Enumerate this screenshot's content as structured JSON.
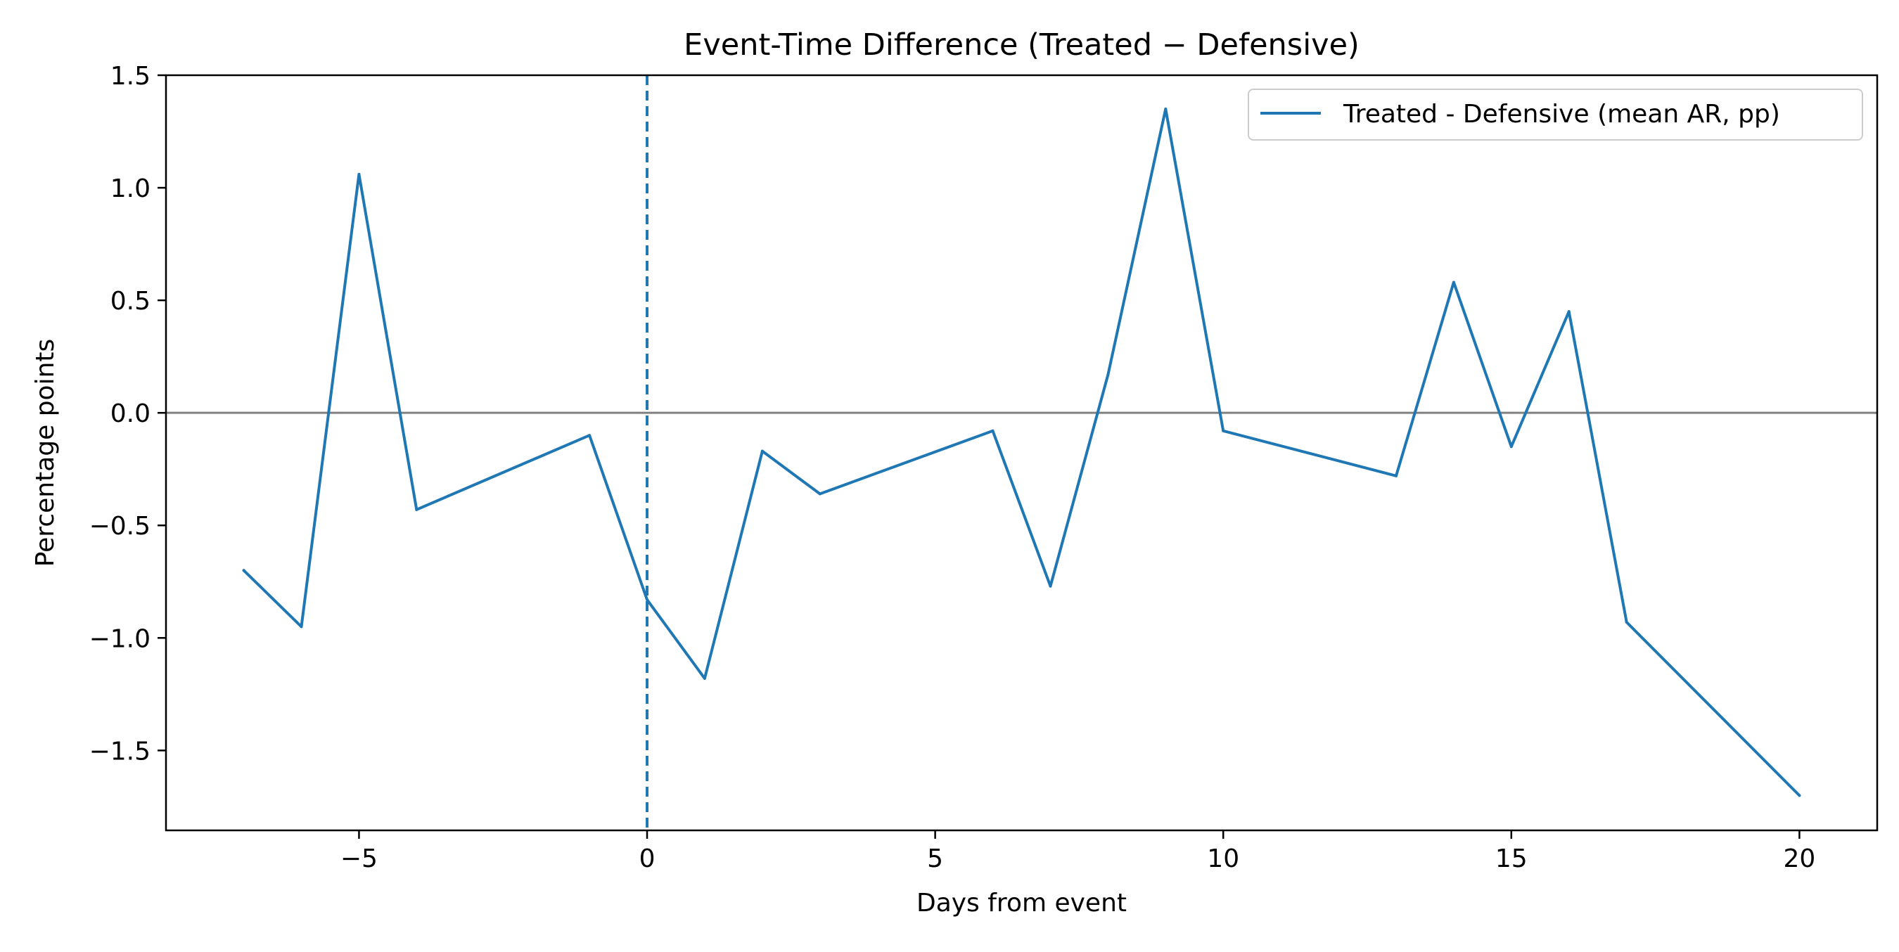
{
  "chart_data": {
    "type": "line",
    "title": "Event-Time Difference (Treated − Defensive)",
    "xlabel": "Days from event",
    "ylabel": "Percentage points",
    "xlim": [
      -8.35,
      21.35
    ],
    "ylim": [
      -1.855,
      1.5
    ],
    "xticks": [
      -5,
      0,
      5,
      10,
      15,
      20
    ],
    "xtick_labels": [
      "−5",
      "0",
      "5",
      "10",
      "15",
      "20"
    ],
    "yticks": [
      1.5,
      1.0,
      0.5,
      0.0,
      -0.5,
      -1.0,
      -1.5
    ],
    "ytick_labels": [
      "1.5",
      "1.0",
      "0.5",
      "0.0",
      "−0.5",
      "−1.0",
      "−1.5"
    ],
    "grid": false,
    "legend_position": "upper right",
    "reference_lines": [
      {
        "orientation": "horizontal",
        "value": 0.0,
        "style": "solid",
        "color": "#808080"
      },
      {
        "orientation": "vertical",
        "value": 0,
        "style": "dashed",
        "color": "#1f77b4"
      }
    ],
    "series": [
      {
        "name": "Treated - Defensive (mean AR, pp)",
        "color": "#1f77b4",
        "x": [
          -7,
          -6,
          -5,
          -4,
          -1,
          0,
          1,
          2,
          3,
          6,
          7,
          8,
          9,
          10,
          13,
          14,
          15,
          16,
          17,
          20
        ],
        "y": [
          -0.7,
          -0.95,
          1.06,
          -0.43,
          -0.1,
          -0.83,
          -1.18,
          -0.17,
          -0.36,
          -0.08,
          -0.77,
          0.17,
          1.35,
          -0.08,
          -0.28,
          0.58,
          -0.15,
          0.45,
          -0.93,
          -1.7
        ]
      }
    ]
  }
}
